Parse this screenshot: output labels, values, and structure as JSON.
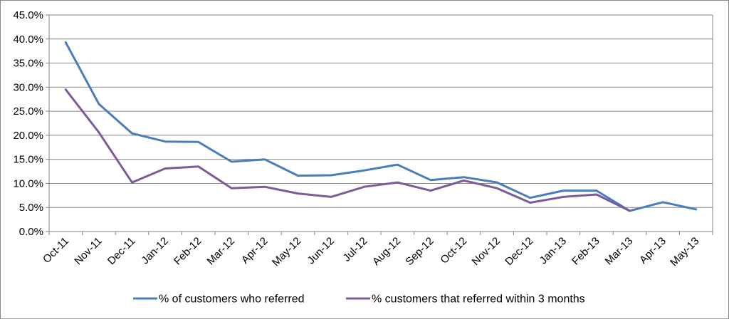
{
  "chart_data": {
    "type": "line",
    "categories": [
      "Oct-11",
      "Nov-11",
      "Dec-11",
      "Jan-12",
      "Feb-12",
      "Mar-12",
      "Apr-12",
      "May-12",
      "Jun-12",
      "Jul-12",
      "Aug-12",
      "Sep-12",
      "Oct-12",
      "Nov-12",
      "Dec-12",
      "Jan-13",
      "Feb-13",
      "Mar-13",
      "Apr-13",
      "May-13"
    ],
    "y_tick_labels": [
      "0.0%",
      "5.0%",
      "10.0%",
      "15.0%",
      "20.0%",
      "25.0%",
      "30.0%",
      "35.0%",
      "40.0%",
      "45.0%"
    ],
    "ylim": [
      0,
      45
    ],
    "y_step": 5,
    "grid": true,
    "legend_position": "bottom",
    "series": [
      {
        "name": "% of customers who referred",
        "color": "#4a7ebb",
        "values": [
          39.3,
          26.5,
          20.4,
          18.7,
          18.6,
          14.5,
          15.0,
          11.6,
          11.7,
          12.7,
          13.9,
          10.7,
          11.3,
          10.2,
          7.0,
          8.5,
          8.5,
          4.3,
          6.1,
          4.6
        ]
      },
      {
        "name": "% customers that referred within 3 months",
        "color": "#7d5a9a",
        "values": [
          29.5,
          20.6,
          10.2,
          13.1,
          13.5,
          9.0,
          9.3,
          7.9,
          7.2,
          9.3,
          10.2,
          8.5,
          10.6,
          9.0,
          6.0,
          7.2,
          7.7,
          4.3,
          null,
          null
        ]
      }
    ]
  }
}
